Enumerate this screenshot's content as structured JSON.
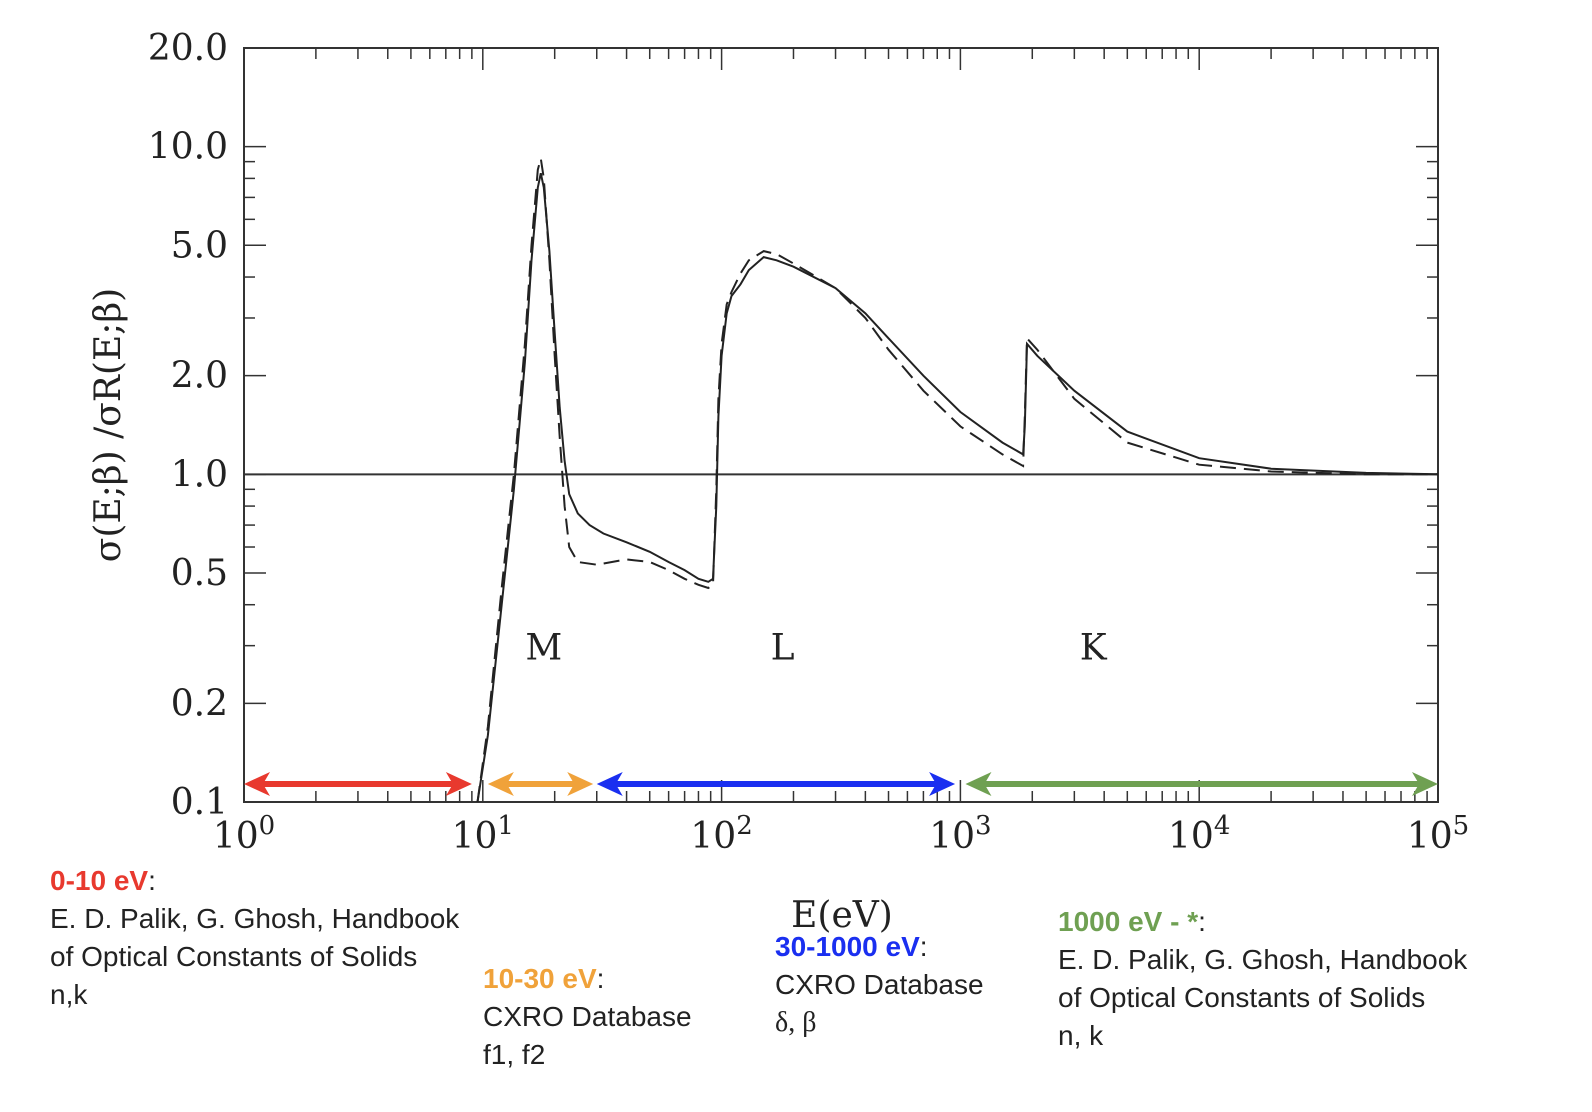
{
  "chart_data": {
    "type": "line",
    "xlabel": "E(eV)",
    "ylabel": "σ(E;β) /σR(E;β)",
    "xscale": "log",
    "yscale": "log",
    "xlim": [
      1,
      100000
    ],
    "ylim": [
      0.1,
      20.0
    ],
    "x_ticks": [
      {
        "value": 1,
        "base": "10",
        "exp": "0"
      },
      {
        "value": 10,
        "base": "10",
        "exp": "1"
      },
      {
        "value": 100,
        "base": "10",
        "exp": "2"
      },
      {
        "value": 1000,
        "base": "10",
        "exp": "3"
      },
      {
        "value": 10000,
        "base": "10",
        "exp": "4"
      },
      {
        "value": 100000,
        "base": "10",
        "exp": "5"
      }
    ],
    "y_ticks": [
      {
        "value": 0.1,
        "label": "0.1"
      },
      {
        "value": 0.2,
        "label": "0.2"
      },
      {
        "value": 0.5,
        "label": "0.5"
      },
      {
        "value": 1.0,
        "label": "1.0"
      },
      {
        "value": 2.0,
        "label": "2.0"
      },
      {
        "value": 5.0,
        "label": "5.0"
      },
      {
        "value": 10.0,
        "label": "10.0"
      },
      {
        "value": 20.0,
        "label": "20.0"
      }
    ],
    "reference_line": {
      "y": 1.0
    },
    "series": [
      {
        "style": "solid",
        "points": [
          [
            9.5,
            0.1
          ],
          [
            10.5,
            0.16
          ],
          [
            12,
            0.4
          ],
          [
            13.5,
            0.9
          ],
          [
            15,
            2.2
          ],
          [
            16,
            4.5
          ],
          [
            17,
            7.5
          ],
          [
            17.5,
            8.3
          ],
          [
            18,
            7.5
          ],
          [
            19,
            4.8
          ],
          [
            20,
            2.7
          ],
          [
            21,
            1.6
          ],
          [
            22,
            1.1
          ],
          [
            23,
            0.87
          ],
          [
            25,
            0.76
          ],
          [
            28,
            0.7
          ],
          [
            32,
            0.66
          ],
          [
            40,
            0.62
          ],
          [
            50,
            0.58
          ],
          [
            60,
            0.54
          ],
          [
            70,
            0.51
          ],
          [
            80,
            0.48
          ],
          [
            88,
            0.47
          ],
          [
            92,
            0.48
          ],
          [
            95,
            0.8
          ],
          [
            97,
            1.5
          ],
          [
            100,
            2.3
          ],
          [
            105,
            3.1
          ],
          [
            110,
            3.5
          ],
          [
            120,
            3.8
          ],
          [
            130,
            4.2
          ],
          [
            150,
            4.6
          ],
          [
            170,
            4.5
          ],
          [
            200,
            4.3
          ],
          [
            300,
            3.7
          ],
          [
            400,
            3.1
          ],
          [
            500,
            2.6
          ],
          [
            700,
            2.0
          ],
          [
            1000,
            1.55
          ],
          [
            1500,
            1.25
          ],
          [
            1830,
            1.15
          ],
          [
            1860,
            1.4
          ],
          [
            1900,
            2.5
          ],
          [
            2100,
            2.3
          ],
          [
            3000,
            1.8
          ],
          [
            5000,
            1.35
          ],
          [
            10000,
            1.12
          ],
          [
            20000,
            1.04
          ],
          [
            50000,
            1.01
          ],
          [
            100000,
            1.0
          ]
        ]
      },
      {
        "style": "dashed",
        "points": [
          [
            9.5,
            0.1
          ],
          [
            10.5,
            0.17
          ],
          [
            12,
            0.45
          ],
          [
            13.5,
            1.0
          ],
          [
            15,
            2.5
          ],
          [
            16,
            5.0
          ],
          [
            17,
            8.5
          ],
          [
            17.5,
            9.2
          ],
          [
            18,
            8.0
          ],
          [
            19,
            4.5
          ],
          [
            20,
            2.3
          ],
          [
            21,
            1.3
          ],
          [
            22,
            0.8
          ],
          [
            23,
            0.6
          ],
          [
            25,
            0.54
          ],
          [
            30,
            0.53
          ],
          [
            40,
            0.55
          ],
          [
            50,
            0.54
          ],
          [
            60,
            0.51
          ],
          [
            70,
            0.48
          ],
          [
            80,
            0.46
          ],
          [
            88,
            0.45
          ],
          [
            92,
            0.46
          ],
          [
            95,
            0.9
          ],
          [
            97,
            1.7
          ],
          [
            100,
            2.5
          ],
          [
            105,
            3.3
          ],
          [
            110,
            3.6
          ],
          [
            120,
            4.1
          ],
          [
            130,
            4.5
          ],
          [
            150,
            4.8
          ],
          [
            170,
            4.7
          ],
          [
            200,
            4.4
          ],
          [
            300,
            3.7
          ],
          [
            400,
            3.0
          ],
          [
            500,
            2.4
          ],
          [
            700,
            1.8
          ],
          [
            1000,
            1.4
          ],
          [
            1500,
            1.15
          ],
          [
            1830,
            1.06
          ],
          [
            1860,
            1.5
          ],
          [
            1900,
            2.6
          ],
          [
            2100,
            2.4
          ],
          [
            3000,
            1.7
          ],
          [
            5000,
            1.25
          ],
          [
            10000,
            1.07
          ],
          [
            20000,
            1.02
          ],
          [
            50000,
            1.0
          ],
          [
            100000,
            1.0
          ]
        ]
      }
    ],
    "annotations": [
      {
        "text": "M",
        "x": 18,
        "y": 0.3
      },
      {
        "text": "L",
        "x": 180,
        "y": 0.3
      },
      {
        "text": "K",
        "x": 3600,
        "y": 0.3
      }
    ],
    "range_arrows": [
      {
        "from": 1,
        "to": 9,
        "color": "#e8392e"
      },
      {
        "from": 10.5,
        "to": 29,
        "color": "#f0a23a"
      },
      {
        "from": 30,
        "to": 950,
        "color": "#1a2ff0"
      },
      {
        "from": 1050,
        "to": 100000,
        "color": "#6fa052"
      }
    ]
  },
  "notes": [
    {
      "range": "0-10 eV",
      "color": "#e8392e",
      "lines": [
        "E. D. Palik, G. Ghosh, Handbook",
        "of Optical Constants of Solids",
        "n,k"
      ]
    },
    {
      "range": "10-30 eV",
      "color": "#f0a23a",
      "lines": [
        "CXRO Database"
      ],
      "symbols": "f1, f2"
    },
    {
      "range": "30-1000 eV",
      "color": "#1a2ff0",
      "lines": [
        "CXRO Database"
      ],
      "symbols": "δ, β"
    },
    {
      "range": "1000 eV - *",
      "color": "#6fa052",
      "lines": [
        "E. D. Palik, G. Ghosh, Handbook",
        "of Optical Constants of Solids",
        "n, k"
      ]
    }
  ]
}
